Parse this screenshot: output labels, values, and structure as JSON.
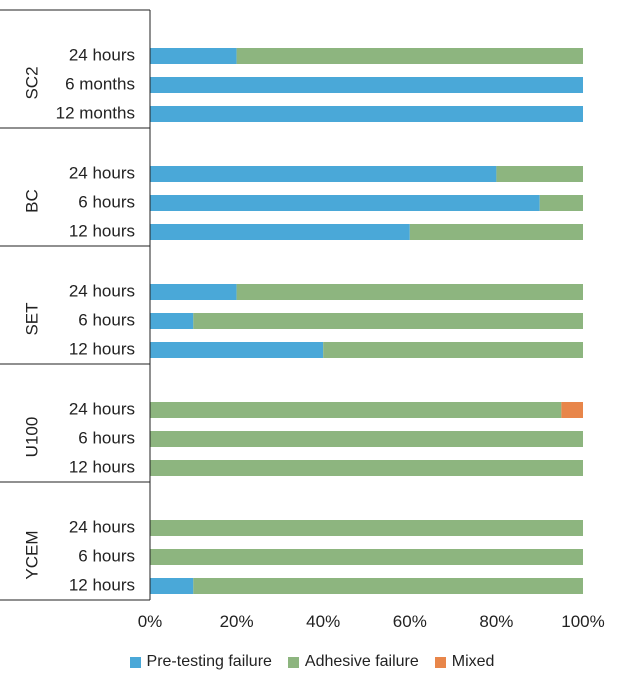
{
  "chart_data": {
    "type": "bar",
    "stacked": true,
    "orientation": "horizontal",
    "groups": [
      {
        "name": "SC2",
        "rows": [
          {
            "label": "24 hours",
            "values": [
              20,
              80,
              0
            ]
          },
          {
            "label": "6 months",
            "values": [
              100,
              0,
              0
            ]
          },
          {
            "label": "12 months",
            "values": [
              100,
              0,
              0
            ]
          }
        ]
      },
      {
        "name": "BC",
        "rows": [
          {
            "label": "24 hours",
            "values": [
              80,
              20,
              0
            ]
          },
          {
            "label": "6 hours",
            "values": [
              90,
              10,
              0
            ]
          },
          {
            "label": "12 hours",
            "values": [
              60,
              40,
              0
            ]
          }
        ]
      },
      {
        "name": "SET",
        "rows": [
          {
            "label": "24 hours",
            "values": [
              20,
              80,
              0
            ]
          },
          {
            "label": "6 hours",
            "values": [
              10,
              90,
              0
            ]
          },
          {
            "label": "12 hours",
            "values": [
              40,
              60,
              0
            ]
          }
        ]
      },
      {
        "name": "U100",
        "rows": [
          {
            "label": "24 hours",
            "values": [
              0,
              95,
              5
            ]
          },
          {
            "label": "6 hours",
            "values": [
              0,
              100,
              0
            ]
          },
          {
            "label": "12 hours",
            "values": [
              0,
              100,
              0
            ]
          }
        ]
      },
      {
        "name": "YCEM",
        "rows": [
          {
            "label": "24 hours",
            "values": [
              0,
              100,
              0
            ]
          },
          {
            "label": "6 hours",
            "values": [
              0,
              100,
              0
            ]
          },
          {
            "label": "12 hours",
            "values": [
              10,
              90,
              0
            ]
          }
        ]
      }
    ],
    "series": [
      {
        "name": "Pre-testing failure",
        "color": "#4aa8d8"
      },
      {
        "name": "Adhesive failure",
        "color": "#8db57f"
      },
      {
        "name": "Mixed",
        "color": "#e8864a"
      }
    ],
    "xlim": [
      0,
      100
    ],
    "xticks": [
      "0%",
      "20%",
      "40%",
      "60%",
      "80%",
      "100%"
    ],
    "legend_position": "bottom",
    "grid": false
  }
}
